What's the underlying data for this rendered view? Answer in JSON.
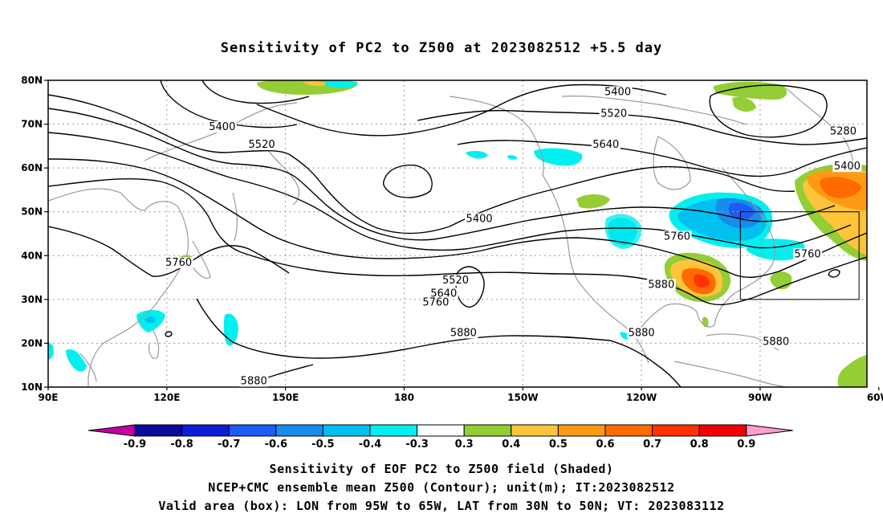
{
  "title": "Sensitivity of PC2 to Z500 at 2023082512 +5.5 day",
  "captions": [
    "Sensitivity of EOF PC2 to Z500 field (Shaded)",
    "NCEP+CMC ensemble mean Z500 (Contour); unit(m); IT:2023082512",
    "Valid area (box): LON from 95W to 65W, LAT from 30N to 50N; VT: 2023083112"
  ],
  "map": {
    "lat_range": [
      10,
      80
    ],
    "lon_range": [
      90,
      297
    ],
    "lat_ticks": [
      {
        "value": 80,
        "label": "80N"
      },
      {
        "value": 70,
        "label": "70N"
      },
      {
        "value": 60,
        "label": "60N"
      },
      {
        "value": 50,
        "label": "50N"
      },
      {
        "value": 40,
        "label": "40N"
      },
      {
        "value": 30,
        "label": "30N"
      },
      {
        "value": 20,
        "label": "20N"
      },
      {
        "value": 10,
        "label": "10N"
      }
    ],
    "lon_ticks": [
      {
        "value": 90,
        "label": "90E"
      },
      {
        "value": 120,
        "label": "120E"
      },
      {
        "value": 150,
        "label": "150E"
      },
      {
        "value": 180,
        "label": "180"
      },
      {
        "value": 210,
        "label": "150W"
      },
      {
        "value": 240,
        "label": "120W"
      },
      {
        "value": 270,
        "label": "90W"
      },
      {
        "value": 300,
        "label": "60W"
      }
    ],
    "valid_box": {
      "lon": [
        265,
        295
      ],
      "lat": [
        30,
        50
      ]
    },
    "contour_labels": [
      {
        "text": "5400",
        "lon": 234,
        "lat": 77
      },
      {
        "text": "5520",
        "lon": 233,
        "lat": 72
      },
      {
        "text": "5640",
        "lon": 231,
        "lat": 65
      },
      {
        "text": "5280",
        "lon": 291,
        "lat": 68
      },
      {
        "text": "5400",
        "lon": 292,
        "lat": 60
      },
      {
        "text": "5400",
        "lon": 134,
        "lat": 69
      },
      {
        "text": "5520",
        "lon": 144,
        "lat": 65
      },
      {
        "text": "5400",
        "lon": 199,
        "lat": 48
      },
      {
        "text": "5520",
        "lon": 193,
        "lat": 34
      },
      {
        "text": "5640",
        "lon": 190,
        "lat": 31
      },
      {
        "text": "5760",
        "lon": 188,
        "lat": 29
      },
      {
        "text": "5880",
        "lon": 195,
        "lat": 22
      },
      {
        "text": "5760",
        "lon": 123,
        "lat": 38
      },
      {
        "text": "5760",
        "lon": 249,
        "lat": 44
      },
      {
        "text": "5880",
        "lon": 245,
        "lat": 33
      },
      {
        "text": "5760",
        "lon": 282,
        "lat": 40
      },
      {
        "text": "5880",
        "lon": 240,
        "lat": 22
      },
      {
        "text": "5880",
        "lon": 274,
        "lat": 20
      },
      {
        "text": "5880",
        "lon": 142,
        "lat": 11
      }
    ]
  },
  "colorbar": {
    "labels": [
      "-0.9",
      "-0.8",
      "-0.7",
      "-0.6",
      "-0.5",
      "-0.4",
      "-0.3",
      "0.3",
      "0.4",
      "0.5",
      "0.6",
      "0.7",
      "0.8",
      "0.9"
    ],
    "colors": [
      "#0b0b9b",
      "#0a1fd6",
      "#1a5cf4",
      "#178ced",
      "#00c0f0",
      "#00f0f0",
      "#ffffff",
      "#95cd35",
      "#ffc53a",
      "#ff9a15",
      "#ff6b00",
      "#ff3200",
      "#f40000"
    ],
    "low_end_color": "#c5009f",
    "high_end_color": "#ff9fce"
  }
}
